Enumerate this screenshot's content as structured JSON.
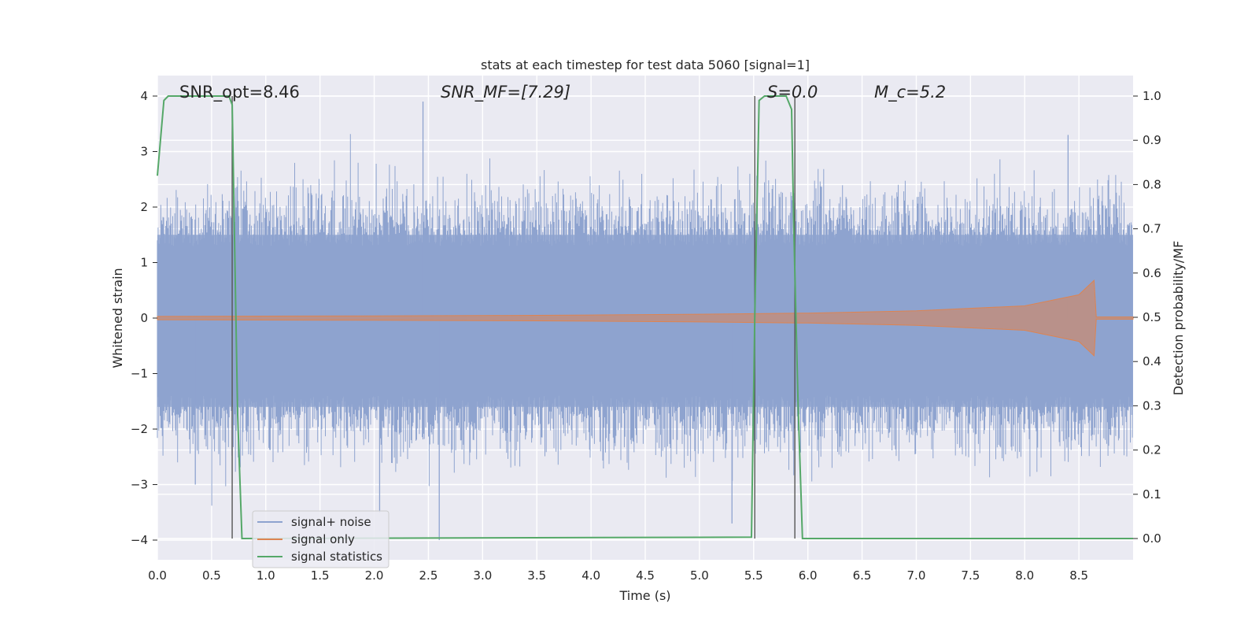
{
  "chart_data": {
    "type": "line",
    "title": "stats at each timestep for test data 5060 [signal=1]",
    "xlabel": "Time (s)",
    "ylabel": "Whitened strain",
    "y2label": "Detection probability/MF",
    "xlim": [
      0,
      9.0
    ],
    "ylim": [
      -4.4,
      4.3
    ],
    "y2lim": [
      -0.05,
      1.05
    ],
    "xticks": [
      "0.0",
      "0.5",
      "1.0",
      "1.5",
      "2.0",
      "2.5",
      "3.0",
      "3.5",
      "4.0",
      "4.5",
      "5.0",
      "5.5",
      "6.0",
      "6.5",
      "7.0",
      "7.5",
      "8.0",
      "8.5"
    ],
    "yticks": [
      "4",
      "3",
      "2",
      "1",
      "0",
      "−1",
      "−2",
      "−3",
      "−4"
    ],
    "y2ticks": [
      "1.0",
      "0.9",
      "0.8",
      "0.7",
      "0.6",
      "0.5",
      "0.4",
      "0.3",
      "0.2",
      "0.1",
      "0.0"
    ],
    "grid": true,
    "legend_position": "lower-left",
    "annotations": {
      "snr_opt": "SNR_opt=8.46",
      "snr_mf": "SNR_MF=[7.29]",
      "s_value": "S=0.0",
      "mc_value": "M_c=5.2"
    },
    "series": [
      {
        "name": "signal+ noise",
        "color": "#8ea3cf",
        "axis": "left",
        "description_points": {
          "x": [
            0,
            9.0
          ],
          "envelope_upper_typical": 1.5,
          "envelope_lower_typical": -1.6,
          "max": 3.9,
          "min": -4.0
        }
      },
      {
        "name": "signal only",
        "color": "#dd8452",
        "axis": "left",
        "x": [
          0,
          1,
          2,
          3,
          4,
          5,
          6,
          7,
          8,
          8.5,
          8.64,
          8.66,
          9.0
        ],
        "amplitude": [
          0.03,
          0.035,
          0.04,
          0.045,
          0.055,
          0.07,
          0.09,
          0.13,
          0.22,
          0.42,
          0.68,
          0.02,
          0.02
        ]
      },
      {
        "name": "signal statistics",
        "color": "#55a868",
        "axis": "right",
        "x": [
          0,
          0.06,
          0.1,
          0.66,
          0.69,
          0.71,
          0.74,
          0.78,
          5.48,
          5.51,
          5.55,
          5.6,
          5.8,
          5.85,
          5.87,
          5.91,
          5.95,
          9.0
        ],
        "y": [
          0.82,
          0.99,
          1.0,
          1.0,
          0.98,
          0.7,
          0.28,
          0.0,
          0.003,
          0.5,
          0.99,
          1.0,
          1.0,
          0.97,
          0.7,
          0.3,
          0.0,
          0.0
        ]
      }
    ],
    "vertical_markers_x": [
      0.69,
      5.51,
      5.88
    ]
  }
}
